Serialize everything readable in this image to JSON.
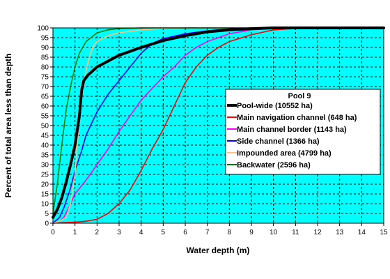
{
  "chart_data": {
    "type": "line",
    "xlabel": "Water depth (m)",
    "ylabel": "Percent of total area less than depth",
    "xlim": [
      0,
      15
    ],
    "ylim": [
      0,
      100
    ],
    "x_ticks": [
      0,
      1,
      2,
      3,
      4,
      5,
      6,
      7,
      8,
      9,
      10,
      11,
      12,
      13,
      14,
      15
    ],
    "y_ticks": [
      0,
      5,
      10,
      15,
      20,
      25,
      30,
      35,
      40,
      45,
      50,
      55,
      60,
      65,
      70,
      75,
      80,
      85,
      90,
      95,
      100
    ],
    "grid": "dashed horizontal and vertical gridlines",
    "plot_background": "#00FFFF",
    "legend": {
      "title": "Pool 9",
      "placement": "right"
    },
    "series": [
      {
        "name": "Pool-wide (10552 ha)",
        "color": "#000000",
        "points": [
          [
            0,
            3
          ],
          [
            0.2,
            7
          ],
          [
            0.4,
            13
          ],
          [
            0.6,
            21
          ],
          [
            0.8,
            30
          ],
          [
            1.0,
            40
          ],
          [
            1.2,
            55
          ],
          [
            1.3,
            68
          ],
          [
            1.4,
            73
          ],
          [
            1.6,
            76
          ],
          [
            2.0,
            80
          ],
          [
            2.5,
            83
          ],
          [
            3.0,
            86
          ],
          [
            4.0,
            90
          ],
          [
            5.0,
            93.5
          ],
          [
            6.0,
            96
          ],
          [
            7.0,
            98
          ],
          [
            8.0,
            99
          ],
          [
            9.0,
            99.6
          ],
          [
            10.0,
            100
          ],
          [
            15.0,
            100
          ]
        ]
      },
      {
        "name": "Main navigation channel (648 ha)",
        "color": "#FF0000",
        "points": [
          [
            0,
            0
          ],
          [
            0.5,
            0.3
          ],
          [
            1.0,
            0.5
          ],
          [
            1.5,
            1
          ],
          [
            2.0,
            2
          ],
          [
            2.5,
            5
          ],
          [
            3.0,
            10
          ],
          [
            3.5,
            17
          ],
          [
            4.0,
            27
          ],
          [
            4.5,
            38
          ],
          [
            5.0,
            48
          ],
          [
            5.5,
            60
          ],
          [
            6.0,
            72
          ],
          [
            6.5,
            80
          ],
          [
            7.0,
            86
          ],
          [
            7.5,
            90
          ],
          [
            8.0,
            93
          ],
          [
            9.0,
            96.5
          ],
          [
            10.0,
            99
          ],
          [
            11.0,
            99.7
          ],
          [
            15.0,
            100
          ]
        ]
      },
      {
        "name": "Main channel border (1143 ha)",
        "color": "#FF00FF",
        "points": [
          [
            0,
            0
          ],
          [
            0.3,
            1
          ],
          [
            0.5,
            3
          ],
          [
            0.8,
            10
          ],
          [
            1.0,
            15
          ],
          [
            1.5,
            22
          ],
          [
            2.0,
            30
          ],
          [
            2.5,
            38
          ],
          [
            3.0,
            47
          ],
          [
            3.5,
            55
          ],
          [
            4.0,
            63
          ],
          [
            4.5,
            69
          ],
          [
            5.0,
            75
          ],
          [
            5.5,
            80
          ],
          [
            6.0,
            86
          ],
          [
            6.5,
            90
          ],
          [
            7.0,
            93
          ],
          [
            8.0,
            97
          ],
          [
            9.0,
            99
          ],
          [
            10.0,
            99.8
          ],
          [
            15.0,
            100
          ]
        ]
      },
      {
        "name": "Side channel (1366 ha)",
        "color": "#0000FF",
        "points": [
          [
            0,
            0
          ],
          [
            0.3,
            3
          ],
          [
            0.5,
            8
          ],
          [
            0.8,
            18
          ],
          [
            1.0,
            27
          ],
          [
            1.3,
            37
          ],
          [
            1.5,
            45
          ],
          [
            2.0,
            57
          ],
          [
            2.5,
            66
          ],
          [
            3.0,
            73
          ],
          [
            3.5,
            80
          ],
          [
            4.0,
            87
          ],
          [
            4.5,
            92
          ],
          [
            5.0,
            94.5
          ],
          [
            6.0,
            97
          ],
          [
            7.0,
            98.5
          ],
          [
            8.0,
            99.5
          ],
          [
            9.0,
            100
          ],
          [
            15.0,
            100
          ]
        ]
      },
      {
        "name": "Impounded area (4799 ha)",
        "color": "#FFC080",
        "points": [
          [
            0,
            0
          ],
          [
            0.3,
            1
          ],
          [
            0.6,
            3
          ],
          [
            0.8,
            10
          ],
          [
            1.0,
            25
          ],
          [
            1.2,
            55
          ],
          [
            1.4,
            72
          ],
          [
            1.6,
            83
          ],
          [
            1.8,
            90
          ],
          [
            2.0,
            93
          ],
          [
            2.5,
            96
          ],
          [
            3.0,
            97.5
          ],
          [
            4.0,
            99
          ],
          [
            5.0,
            99.7
          ],
          [
            6.0,
            100
          ],
          [
            15.0,
            100
          ]
        ]
      },
      {
        "name": "Backwater (2596 ha)",
        "color": "#008000",
        "points": [
          [
            0,
            5
          ],
          [
            0.2,
            20
          ],
          [
            0.4,
            40
          ],
          [
            0.6,
            58
          ],
          [
            0.8,
            70
          ],
          [
            1.0,
            80
          ],
          [
            1.2,
            87
          ],
          [
            1.5,
            93
          ],
          [
            2.0,
            97.5
          ],
          [
            2.5,
            99
          ],
          [
            3.0,
            99.7
          ],
          [
            4.0,
            100
          ],
          [
            15.0,
            100
          ]
        ]
      }
    ]
  }
}
